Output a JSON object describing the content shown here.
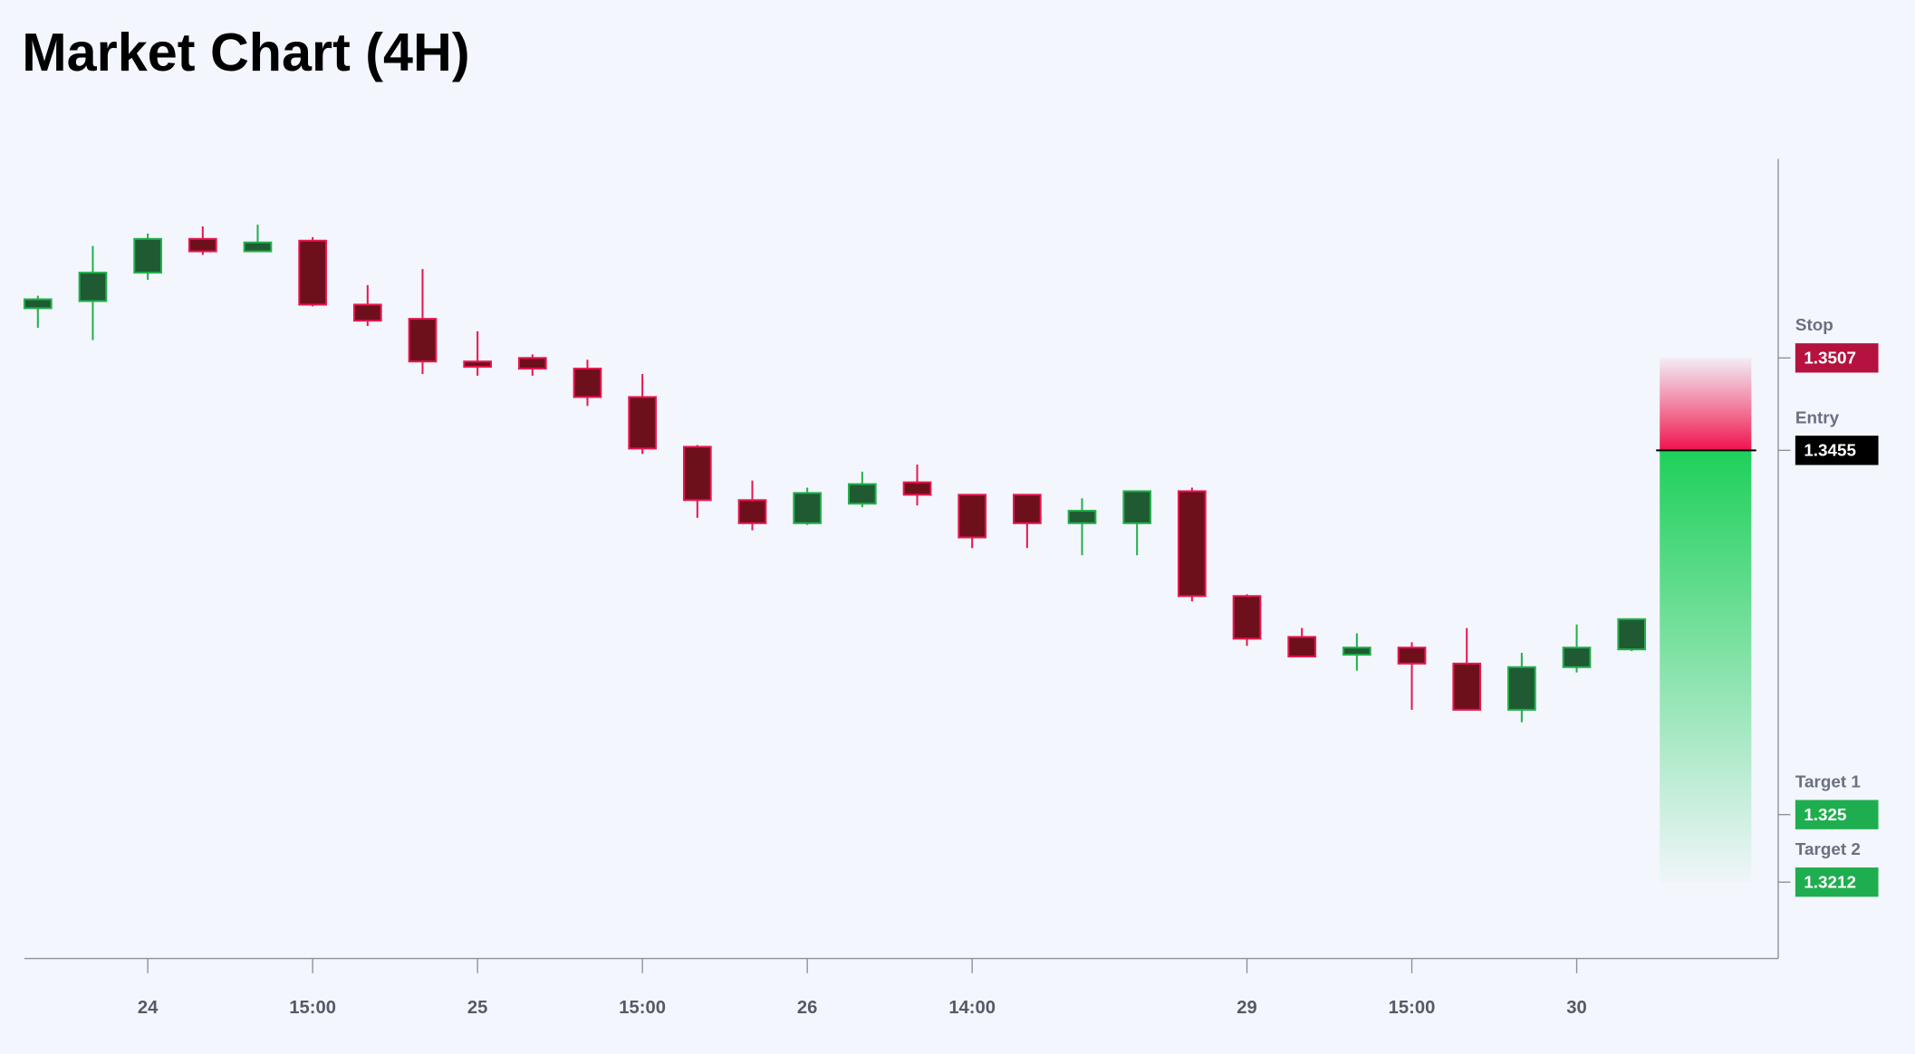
{
  "chart_data": {
    "type": "candlestick",
    "title": "Market Chart (4H)",
    "categories": [
      null,
      null,
      "24",
      null,
      null,
      "15:00",
      null,
      null,
      "25",
      null,
      null,
      "15:00",
      null,
      null,
      "26",
      null,
      null,
      "14:00",
      null,
      null,
      null,
      null,
      "29",
      null,
      null,
      "15:00",
      null,
      null,
      "30",
      null
    ],
    "open": [
      1.3535,
      1.3539,
      1.3555,
      1.3574,
      1.3567,
      1.3573,
      1.3537,
      1.3529,
      1.3505,
      1.3507,
      1.3501,
      1.3485,
      1.3457,
      1.3427,
      1.3414,
      1.3425,
      1.3437,
      1.343,
      1.343,
      1.3414,
      1.3414,
      1.3432,
      1.3373,
      1.335,
      1.334,
      1.3344,
      1.3335,
      1.3309,
      1.3333,
      1.3343
    ],
    "high": [
      1.3542,
      1.357,
      1.3577,
      1.3581,
      1.3582,
      1.3575,
      1.3548,
      1.3557,
      1.3522,
      1.3509,
      1.3506,
      1.3498,
      1.3458,
      1.3438,
      1.3434,
      1.3443,
      1.3447,
      1.343,
      1.343,
      1.3428,
      1.3432,
      1.3434,
      1.3374,
      1.3355,
      1.3352,
      1.3347,
      1.3355,
      1.3341,
      1.3357,
      1.336
    ],
    "low": [
      1.3524,
      1.3517,
      1.3551,
      1.3565,
      1.3567,
      1.3536,
      1.3525,
      1.3498,
      1.3497,
      1.3497,
      1.348,
      1.3453,
      1.3417,
      1.341,
      1.3413,
      1.3423,
      1.3424,
      1.34,
      1.34,
      1.3396,
      1.3396,
      1.337,
      1.3345,
      1.3339,
      1.3331,
      1.3309,
      1.3309,
      1.3302,
      1.333,
      1.3342
    ],
    "close": [
      1.354,
      1.3555,
      1.3574,
      1.3567,
      1.3572,
      1.3537,
      1.3528,
      1.3505,
      1.3502,
      1.3501,
      1.3485,
      1.3456,
      1.3427,
      1.3414,
      1.3431,
      1.3436,
      1.343,
      1.3406,
      1.3414,
      1.3421,
      1.3432,
      1.3373,
      1.3349,
      1.3339,
      1.3344,
      1.3335,
      1.3309,
      1.3333,
      1.3344,
      1.336
    ],
    "up_color": "#1f5a32",
    "up_edge_color": "#22b04b",
    "down_color": "#6e0f1c",
    "down_edge_color": "#e8174f",
    "ylim": [
      1.3169,
      1.3619
    ],
    "levels": [
      {
        "name": "Stop",
        "value": 1.3507,
        "color": "#b5123f"
      },
      {
        "name": "Entry",
        "value": 1.3455,
        "color": "#000000"
      },
      {
        "name": "Target 1",
        "value": 1.325,
        "color": "#1fae4f"
      },
      {
        "name": "Target 2",
        "value": 1.3212,
        "color": "#1fae4f"
      }
    ]
  }
}
